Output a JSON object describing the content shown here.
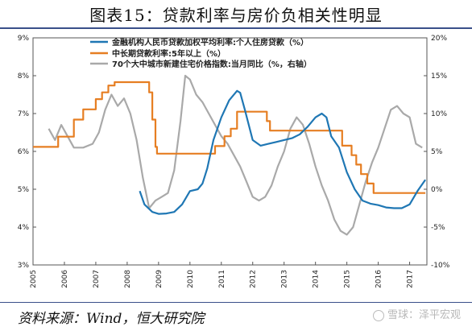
{
  "title": "图表15：贷款利率与房价负相关性明显",
  "source": "资料来源：Wind，恒大研究院",
  "watermark": "雪球：泽平宏观",
  "chart_data": {
    "type": "line",
    "x_range": [
      2005.0,
      2017.55
    ],
    "x_ticks": [
      "2005",
      "2006",
      "2007",
      "2008",
      "2009",
      "2010",
      "2011",
      "2012",
      "2013",
      "2014",
      "2015",
      "2016",
      "2017"
    ],
    "y_left": {
      "range": [
        3,
        9
      ],
      "ticks": [
        "3%",
        "4%",
        "5%",
        "6%",
        "7%",
        "8%",
        "9%"
      ]
    },
    "y_right": {
      "range": [
        -10,
        20
      ],
      "ticks": [
        "-10%",
        "-5%",
        "0%",
        "5%",
        "10%",
        "15%",
        "20%"
      ]
    },
    "grid": false,
    "legend_position": "top-center",
    "series": [
      {
        "name": "金融机构人民币贷款加权平均利率:个人住房贷款（%）",
        "color": "#1f77b4",
        "axis": "left",
        "x": [
          2008.4,
          2008.55,
          2008.8,
          2009.0,
          2009.25,
          2009.5,
          2009.75,
          2010.0,
          2010.25,
          2010.4,
          2010.55,
          2010.75,
          2011.0,
          2011.25,
          2011.5,
          2011.6,
          2011.75,
          2012.0,
          2012.25,
          2012.5,
          2012.75,
          2013.0,
          2013.25,
          2013.5,
          2013.75,
          2014.0,
          2014.2,
          2014.35,
          2014.5,
          2014.75,
          2015.0,
          2015.25,
          2015.5,
          2015.75,
          2016.0,
          2016.25,
          2016.5,
          2016.75,
          2017.0,
          2017.25,
          2017.5
        ],
        "values": [
          4.95,
          4.6,
          4.4,
          4.35,
          4.36,
          4.4,
          4.6,
          4.95,
          5.0,
          5.15,
          5.55,
          6.3,
          6.9,
          7.35,
          7.6,
          7.55,
          7.1,
          6.3,
          6.15,
          6.2,
          6.25,
          6.3,
          6.35,
          6.45,
          6.65,
          6.9,
          7.0,
          6.9,
          6.4,
          6.1,
          5.45,
          5.0,
          4.7,
          4.62,
          4.58,
          4.52,
          4.5,
          4.5,
          4.6,
          4.95,
          5.25
        ]
      },
      {
        "name": "中长期贷款利率:5年以上（%）",
        "color": "#e67e22",
        "axis": "left",
        "x": [
          2005.0,
          2005.8,
          2005.8,
          2006.3,
          2006.3,
          2006.6,
          2006.6,
          2007.0,
          2007.0,
          2007.2,
          2007.2,
          2007.4,
          2007.4,
          2007.6,
          2007.6,
          2007.7,
          2007.7,
          2008.7,
          2008.7,
          2008.8,
          2008.8,
          2008.9,
          2008.9,
          2008.95,
          2008.95,
          2010.8,
          2010.8,
          2011.1,
          2011.1,
          2011.3,
          2011.3,
          2011.5,
          2011.5,
          2012.45,
          2012.45,
          2012.55,
          2012.55,
          2014.85,
          2014.85,
          2015.15,
          2015.15,
          2015.3,
          2015.3,
          2015.45,
          2015.45,
          2015.65,
          2015.65,
          2015.85,
          2015.85,
          2017.5
        ],
        "values": [
          6.12,
          6.12,
          6.39,
          6.39,
          6.84,
          6.84,
          7.11,
          7.11,
          7.38,
          7.38,
          7.56,
          7.56,
          7.74,
          7.74,
          7.83,
          7.83,
          7.83,
          7.83,
          7.56,
          7.56,
          6.84,
          6.84,
          6.12,
          6.12,
          5.94,
          5.94,
          6.14,
          6.14,
          6.4,
          6.4,
          6.6,
          6.6,
          7.05,
          7.05,
          6.8,
          6.8,
          6.55,
          6.55,
          6.15,
          6.15,
          5.9,
          5.9,
          5.65,
          5.65,
          5.4,
          5.4,
          5.15,
          5.15,
          4.9,
          4.9
        ]
      },
      {
        "name": "70个大中城市新建住宅价格指数:当月同比（%，右轴）",
        "color": "#a9a9a9",
        "axis": "right",
        "x": [
          2005.5,
          2005.7,
          2005.9,
          2006.1,
          2006.3,
          2006.6,
          2006.9,
          2007.1,
          2007.3,
          2007.5,
          2007.7,
          2007.9,
          2008.1,
          2008.3,
          2008.5,
          2008.7,
          2008.9,
          2009.1,
          2009.3,
          2009.5,
          2009.7,
          2009.85,
          2010.0,
          2010.2,
          2010.4,
          2010.6,
          2010.8,
          2011.0,
          2011.2,
          2011.4,
          2011.6,
          2011.8,
          2012.0,
          2012.2,
          2012.4,
          2012.6,
          2012.8,
          2013.0,
          2013.2,
          2013.4,
          2013.6,
          2013.8,
          2014.0,
          2014.2,
          2014.4,
          2014.6,
          2014.8,
          2015.0,
          2015.2,
          2015.4,
          2015.6,
          2015.8,
          2016.0,
          2016.2,
          2016.4,
          2016.6,
          2016.8,
          2017.0,
          2017.2,
          2017.4
        ],
        "values": [
          8,
          6.5,
          8.5,
          7,
          5.5,
          5.5,
          6,
          7.5,
          10.5,
          12.5,
          11,
          12,
          10,
          6.5,
          1.5,
          -2.5,
          -1.5,
          -1,
          -0.5,
          2.5,
          9,
          15,
          14.5,
          12.5,
          11.5,
          10,
          8.5,
          7,
          6,
          4.5,
          3,
          1,
          -1,
          -1.5,
          -1,
          0.5,
          3,
          5,
          8,
          9.5,
          8.5,
          6,
          3,
          0.5,
          -1.5,
          -4,
          -5.5,
          -6,
          -5,
          -2,
          1,
          3.5,
          5.5,
          8,
          10.5,
          11,
          10,
          9.5,
          6,
          5.5
        ]
      }
    ]
  }
}
